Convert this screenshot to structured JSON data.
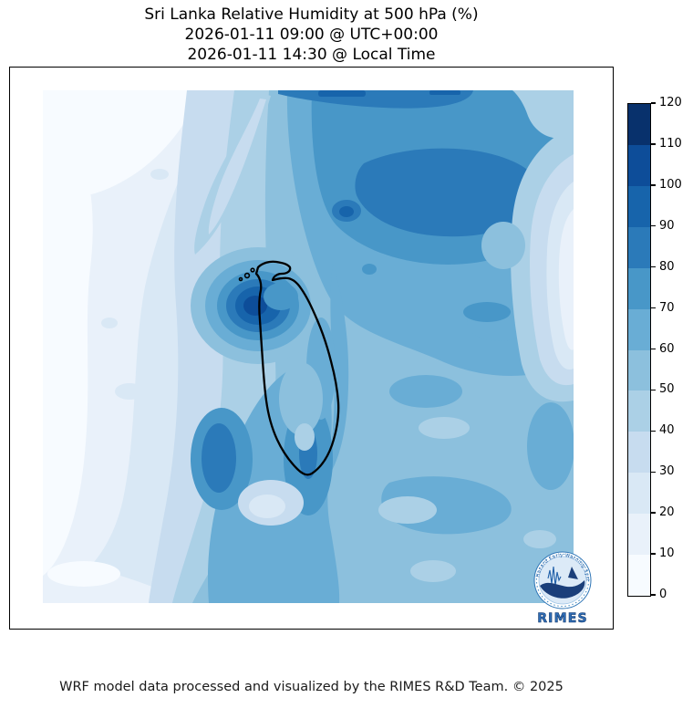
{
  "title": {
    "line1": "Sri Lanka Relative Humidity at 500 hPa (%)",
    "line2": "2026-01-11 09:00 @ UTC+00:00",
    "line3": "2026-01-11 14:30 @ Local Time"
  },
  "map": {
    "region": "Sri Lanka",
    "coastline_color": "#000000"
  },
  "colorbar": {
    "min": 0,
    "max": 120,
    "tick_step": 10,
    "ticks": [
      0,
      10,
      20,
      30,
      40,
      50,
      60,
      70,
      80,
      90,
      100,
      110,
      120
    ],
    "tick_labels": [
      "0",
      "10",
      "20",
      "30",
      "40",
      "50",
      "60",
      "70",
      "80",
      "90",
      "100",
      "110",
      "120"
    ]
  },
  "logo": {
    "caption": "RIMES",
    "ring_text": "Hazard Early Warning System",
    "caption_color": "#2f6db5"
  },
  "footer": {
    "credit": "WRF model data processed and visualized by the RIMES R&D Team. © 2025"
  },
  "chart_data": {
    "type": "heatmap",
    "title": "Sri Lanka Relative Humidity at 500 hPa (%)",
    "valid_time_utc": "2026-01-11 09:00 @ UTC+00:00",
    "valid_time_local": "2026-01-11 14:30 @ Local Time",
    "variable": "Relative Humidity",
    "pressure_level": "500 hPa",
    "units": "%",
    "colormap": "Blues (discrete, filled contours)",
    "levels": [
      0,
      10,
      20,
      30,
      40,
      50,
      60,
      70,
      80,
      90,
      100,
      110,
      120
    ],
    "band_colors": [
      "#f7fbff",
      "#e9f1fa",
      "#d9e8f5",
      "#c7dcef",
      "#abd0e6",
      "#8cc0dd",
      "#69add5",
      "#4897c8",
      "#2b7ab9",
      "#1764ab",
      "#0d4d99",
      "#08316c"
    ],
    "colorbar_range": [
      0,
      120
    ],
    "legend_position": "right vertical colorbar",
    "overlay": "Sri Lanka coastline outlined in black, no lat/lon axis labels",
    "features": [
      {
        "area": "offshore, immediately west/northwest of Sri Lanka",
        "value_range": "90-110",
        "note": "darkest local maximum blob"
      },
      {
        "area": "broad band north and northeast of the island (upper-right of domain)",
        "value_range": "70-90"
      },
      {
        "area": "thin band along the very top of the domain",
        "value_range": "80-100"
      },
      {
        "area": "western third of domain",
        "value_range": "0-30",
        "note": "driest, nearly white"
      },
      {
        "area": "pale diagonal streak upper-centre descending southwest",
        "value_range": "30-50"
      },
      {
        "area": "vertical band south of the island and lower-centre cores",
        "value_range": "60-90"
      },
      {
        "area": "right edge mid-height light tongue",
        "value_range": "10-40"
      },
      {
        "area": "southeast quadrant background with patchiness",
        "value_range": "40-70"
      },
      {
        "area": "island interior",
        "value_range": "40-80",
        "note": "wetter northwest, drier south-centre"
      }
    ]
  }
}
